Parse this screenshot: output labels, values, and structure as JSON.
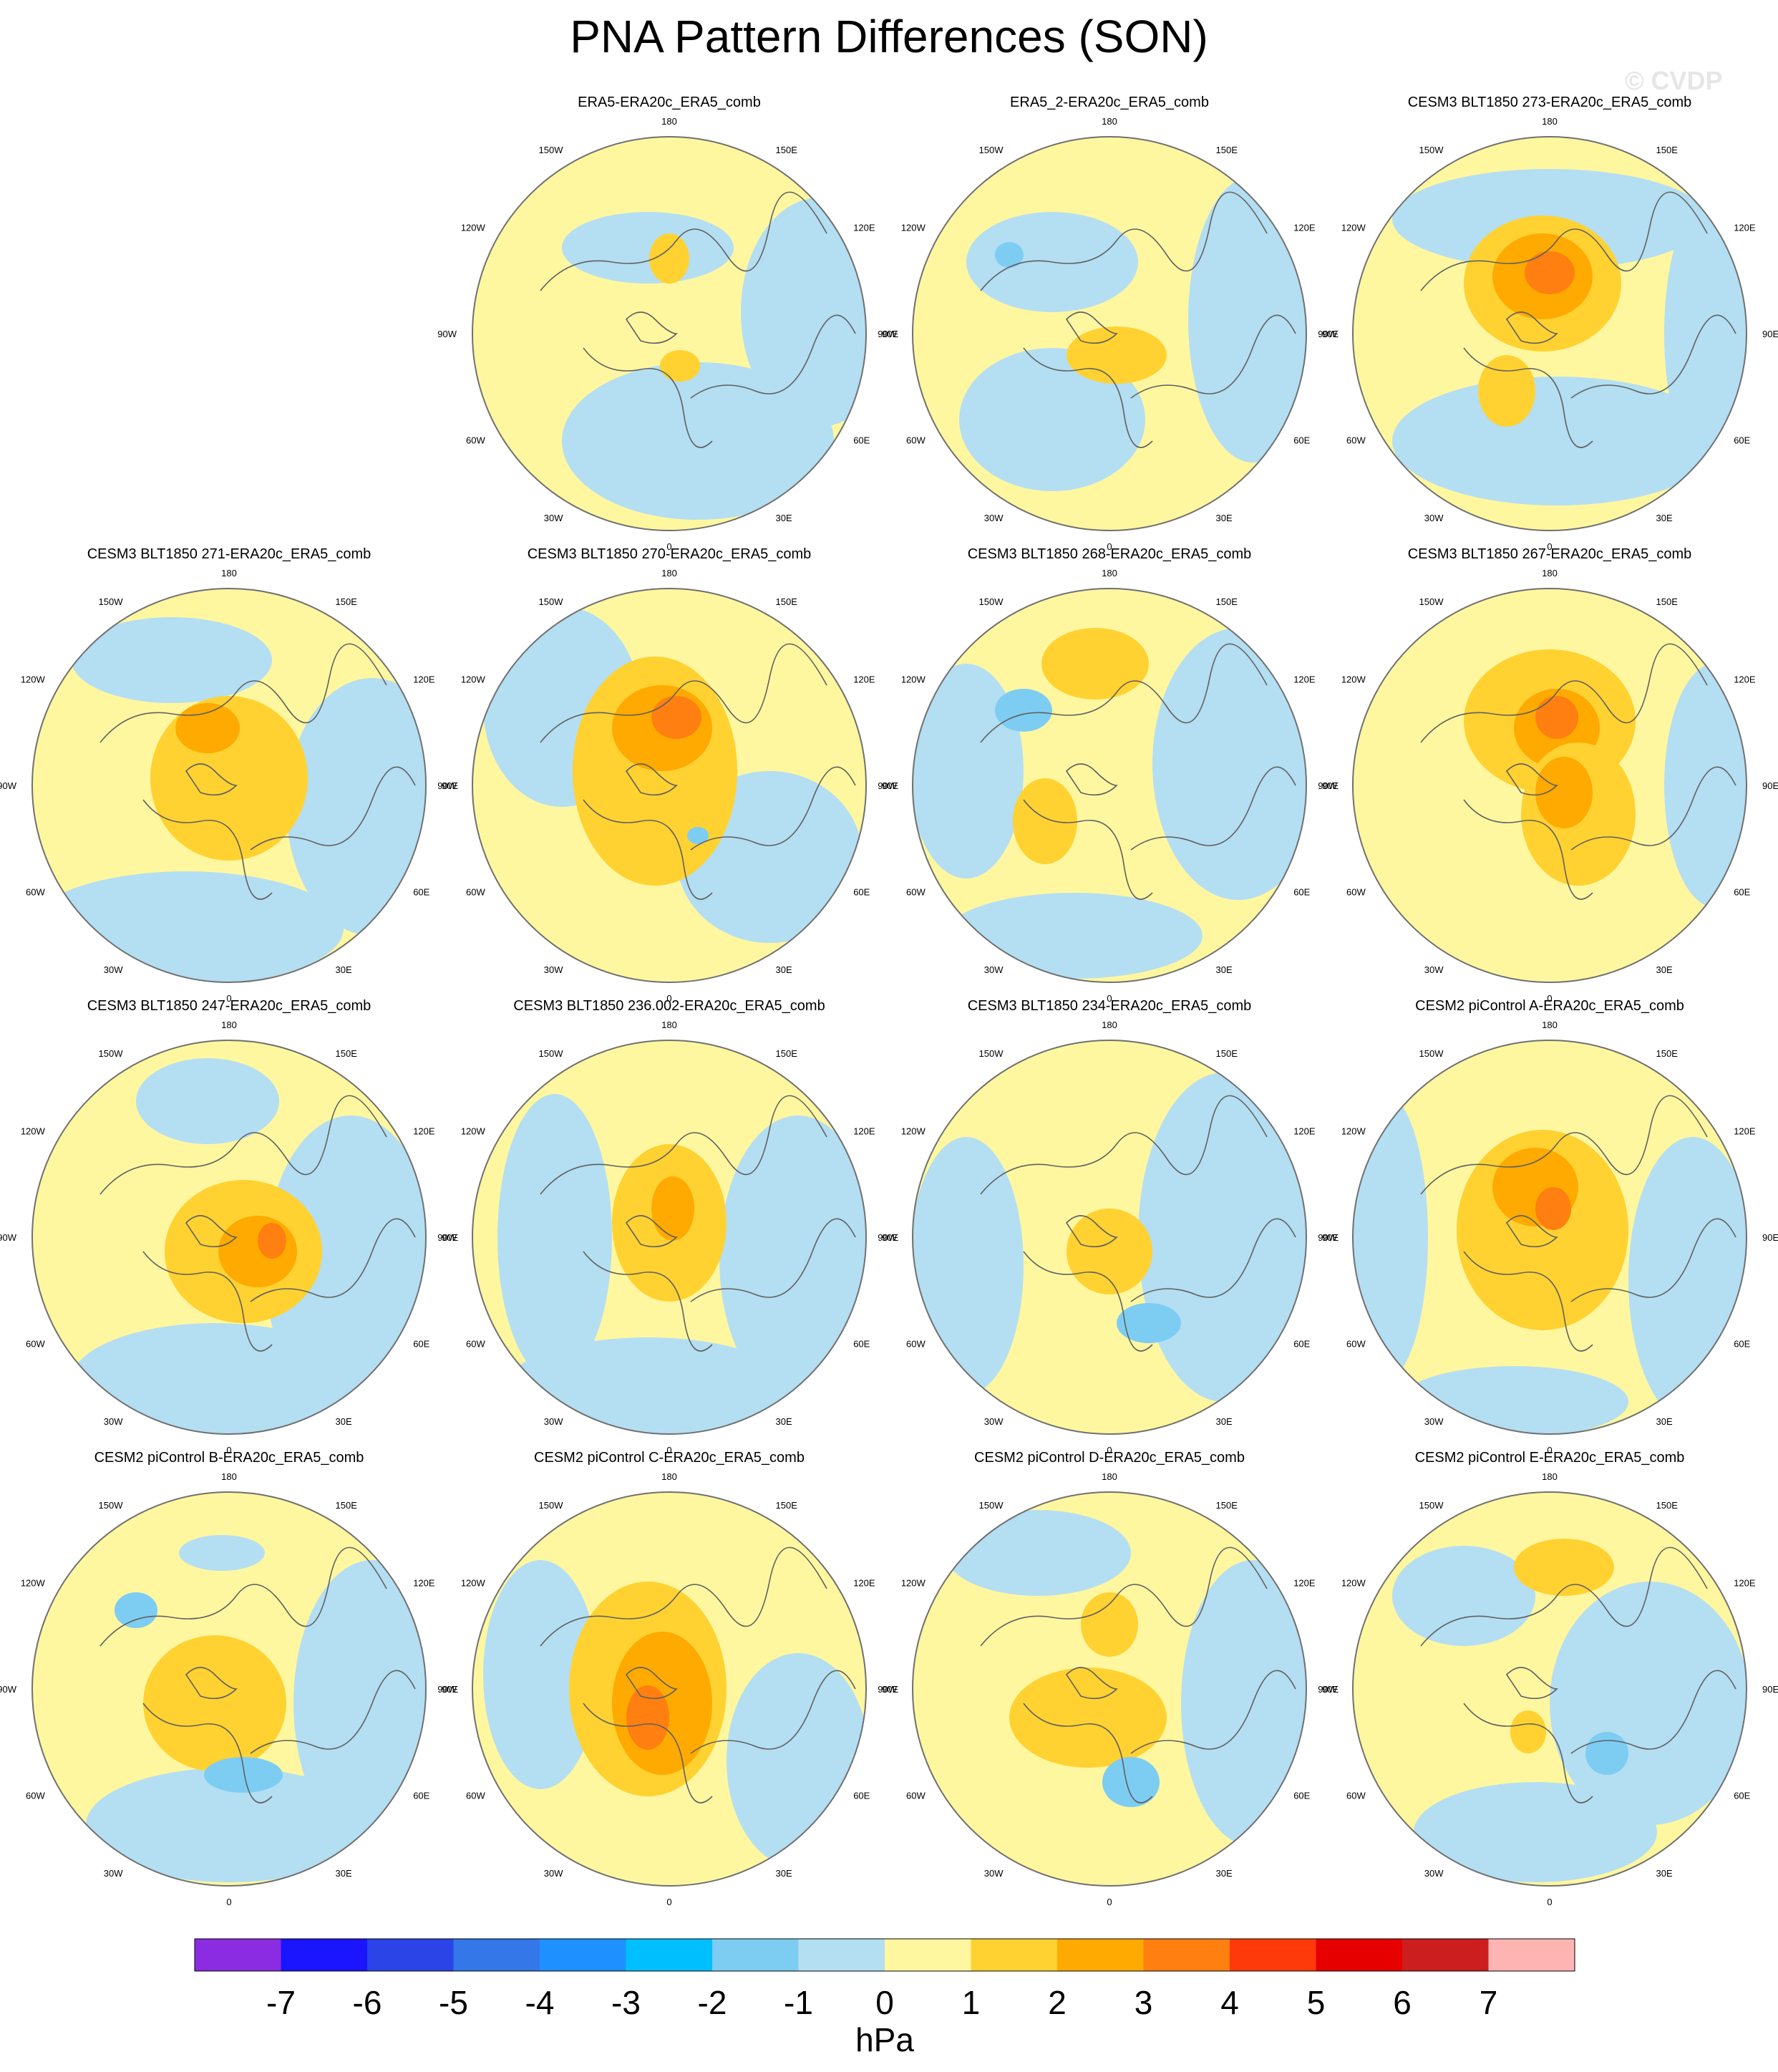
{
  "title": "PNA Pattern Differences (SON)",
  "watermark": "© CVDP",
  "lon_labels": [
    "180",
    "150E",
    "120E",
    "90E",
    "60E",
    "30E",
    "0",
    "30W",
    "60W",
    "90W",
    "120W",
    "150W"
  ],
  "panels": [
    {
      "title": "ERA5-ERA20c_ERA5_comb",
      "row": 0,
      "col": 1
    },
    {
      "title": "ERA5_2-ERA20c_ERA5_comb",
      "row": 0,
      "col": 2
    },
    {
      "title": "CESM3 BLT1850 273-ERA20c_ERA5_comb",
      "row": 0,
      "col": 3
    },
    {
      "title": "CESM3 BLT1850 271-ERA20c_ERA5_comb",
      "row": 1,
      "col": 0
    },
    {
      "title": "CESM3 BLT1850 270-ERA20c_ERA5_comb",
      "row": 1,
      "col": 1
    },
    {
      "title": "CESM3 BLT1850 268-ERA20c_ERA5_comb",
      "row": 1,
      "col": 2
    },
    {
      "title": "CESM3 BLT1850 267-ERA20c_ERA5_comb",
      "row": 1,
      "col": 3
    },
    {
      "title": "CESM3 BLT1850 247-ERA20c_ERA5_comb",
      "row": 2,
      "col": 0
    },
    {
      "title": "CESM3 BLT1850 236.002-ERA20c_ERA5_comb",
      "row": 2,
      "col": 1
    },
    {
      "title": "CESM3 BLT1850 234-ERA20c_ERA5_comb",
      "row": 2,
      "col": 2
    },
    {
      "title": "CESM2 piControl A-ERA20c_ERA5_comb",
      "row": 2,
      "col": 3
    },
    {
      "title": "CESM2 piControl B-ERA20c_ERA5_comb",
      "row": 3,
      "col": 0
    },
    {
      "title": "CESM2 piControl C-ERA20c_ERA5_comb",
      "row": 3,
      "col": 1
    },
    {
      "title": "CESM2 piControl D-ERA20c_ERA5_comb",
      "row": 3,
      "col": 2
    },
    {
      "title": "CESM2 piControl E-ERA20c_ERA5_comb",
      "row": 3,
      "col": 3
    }
  ],
  "colorbar": {
    "colors": [
      "#8b2be2",
      "#1a14ff",
      "#2b44e8",
      "#3377e8",
      "#1e90ff",
      "#00bfff",
      "#7dcdf3",
      "#b4def2",
      "#fff7a0",
      "#ffd232",
      "#ffaa00",
      "#ff7f10",
      "#ff3a0a",
      "#e60000",
      "#cc1e1e",
      "#ffb4b4"
    ],
    "ticks": [
      "-7",
      "-6",
      "-5",
      "-4",
      "-3",
      "-2",
      "-1",
      "0",
      "1",
      "2",
      "3",
      "4",
      "5",
      "6",
      "7"
    ],
    "units": "hPa"
  }
}
